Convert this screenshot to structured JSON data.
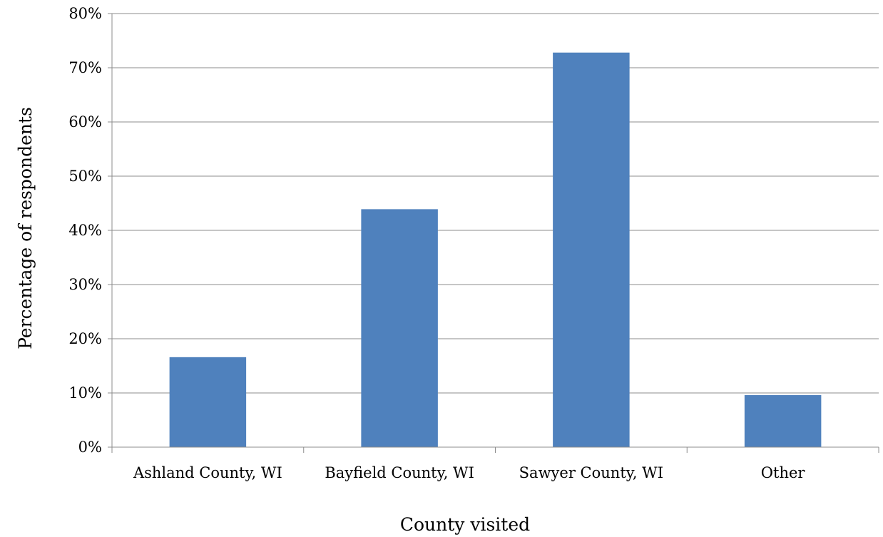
{
  "chart_data": {
    "type": "bar",
    "title": "",
    "xlabel": "County visited",
    "ylabel": "Percentage of respondents",
    "categories": [
      "Ashland County, WI",
      "Bayfield County, WI",
      "Sawyer County, WI",
      "Other"
    ],
    "values": [
      16.6,
      43.9,
      72.8,
      9.6
    ],
    "ylim": [
      0,
      80
    ],
    "yticks": [
      "0%",
      "10%",
      "20%",
      "30%",
      "40%",
      "50%",
      "60%",
      "70%",
      "80%"
    ],
    "grid": true,
    "legend": "none",
    "bar_color": "#4f81bd"
  }
}
